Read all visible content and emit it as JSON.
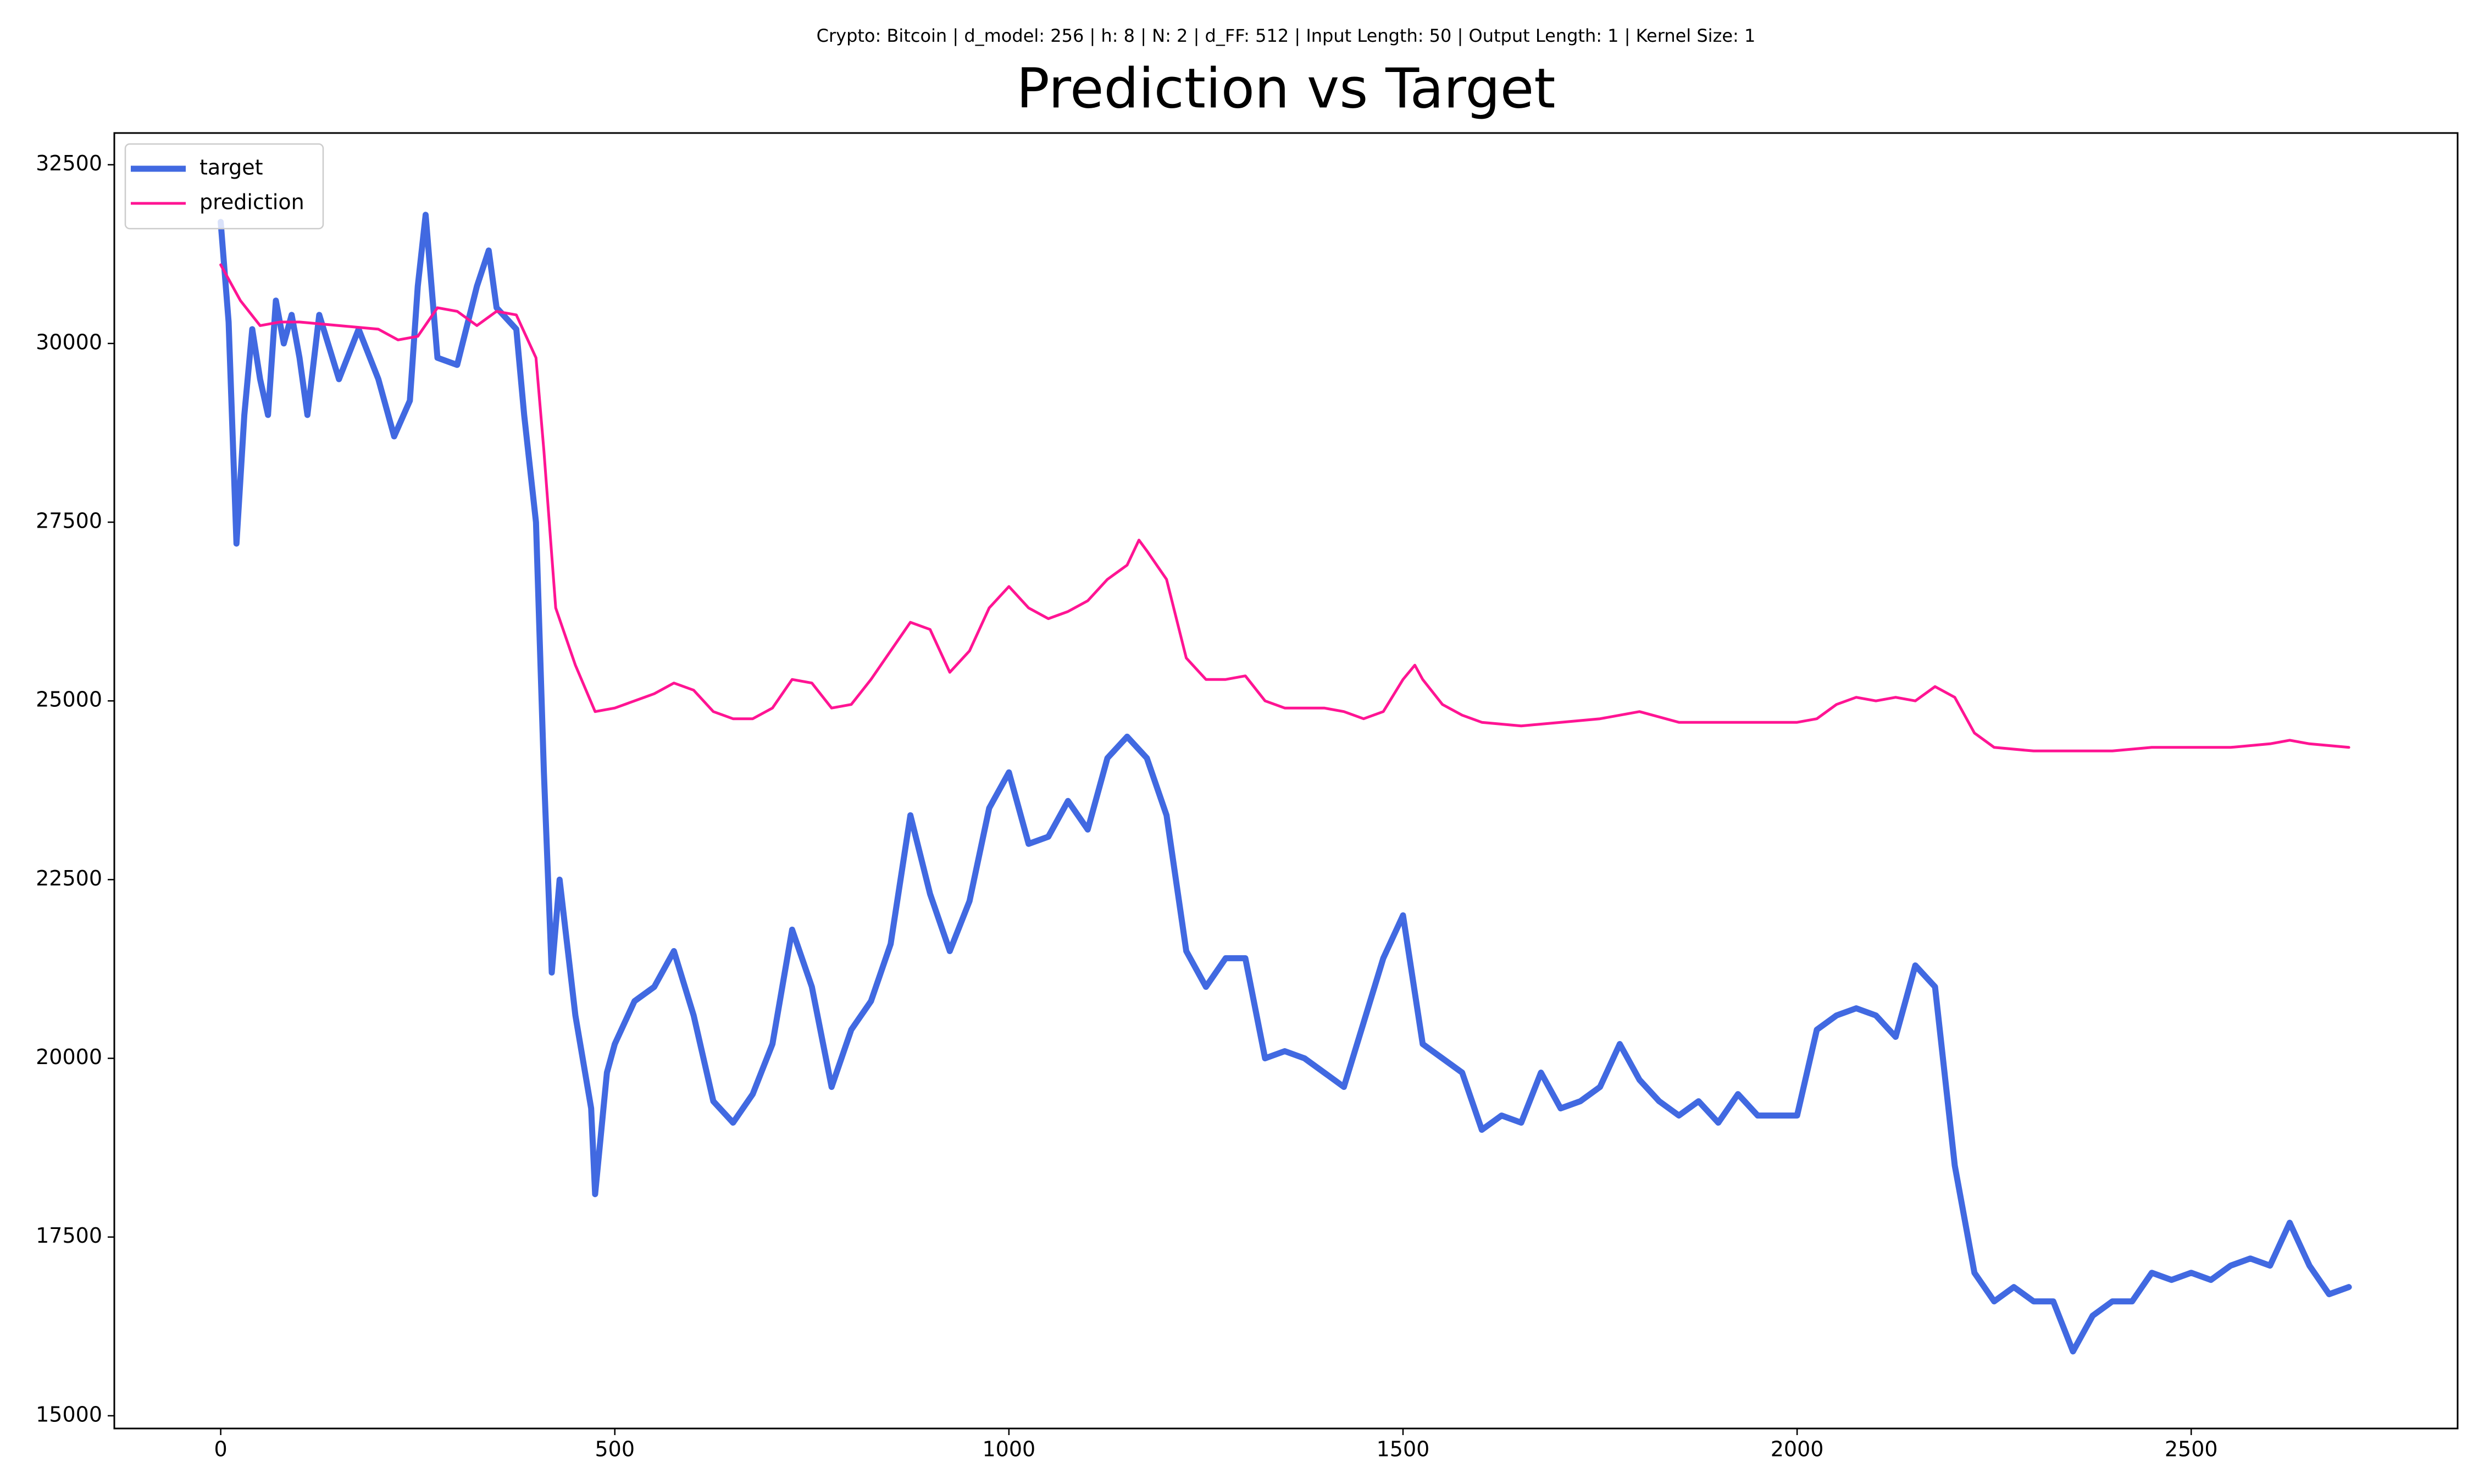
{
  "chart_data": {
    "type": "line",
    "subtitle": "Crypto: Bitcoin | d_model: 256 | h: 8 | N: 2 | d_FF: 512 | Input Length: 50 | Output Length: 1 | Kernel Size: 1",
    "title": "Prediction vs Target",
    "xlim": [
      -135,
      2838
    ],
    "ylim": [
      14822,
      32944
    ],
    "xticks": [
      0,
      500,
      1000,
      1500,
      2000,
      2500
    ],
    "yticks": [
      15000,
      17500,
      20000,
      22500,
      25000,
      27500,
      30000,
      32500
    ],
    "grid": false,
    "legend": "upper left",
    "series": [
      {
        "name": "target",
        "color": "#4169e1",
        "line_width": 11,
        "x": [
          0,
          10,
          20,
          30,
          40,
          50,
          60,
          70,
          80,
          90,
          100,
          110,
          125,
          150,
          175,
          200,
          220,
          240,
          250,
          260,
          275,
          300,
          325,
          340,
          350,
          375,
          385,
          400,
          410,
          420,
          430,
          450,
          470,
          475,
          490,
          500,
          525,
          550,
          575,
          600,
          625,
          650,
          675,
          700,
          725,
          750,
          775,
          800,
          825,
          850,
          875,
          900,
          925,
          950,
          975,
          1000,
          1025,
          1050,
          1075,
          1100,
          1125,
          1150,
          1175,
          1200,
          1225,
          1250,
          1275,
          1300,
          1325,
          1350,
          1375,
          1400,
          1425,
          1450,
          1475,
          1500,
          1525,
          1550,
          1575,
          1600,
          1625,
          1650,
          1675,
          1700,
          1725,
          1750,
          1775,
          1800,
          1825,
          1850,
          1875,
          1900,
          1925,
          1950,
          1975,
          2000,
          2025,
          2050,
          2075,
          2100,
          2125,
          2150,
          2175,
          2200,
          2225,
          2250,
          2275,
          2300,
          2325,
          2350,
          2375,
          2400,
          2425,
          2450,
          2475,
          2500,
          2525,
          2550,
          2575,
          2600,
          2625,
          2650,
          2675,
          2700
        ],
        "values": [
          31700,
          30300,
          27200,
          29000,
          30200,
          29500,
          29000,
          30600,
          30000,
          30400,
          29800,
          29000,
          30400,
          29500,
          30200,
          29500,
          28700,
          29200,
          30800,
          31800,
          29800,
          29700,
          30800,
          31300,
          30500,
          30200,
          29000,
          27500,
          24000,
          21200,
          22500,
          20600,
          19300,
          18100,
          19800,
          20200,
          20800,
          21000,
          21500,
          20600,
          19400,
          19100,
          19500,
          20200,
          21800,
          21000,
          19600,
          20400,
          20800,
          21600,
          23400,
          22300,
          21500,
          22200,
          23500,
          24000,
          23000,
          23100,
          23600,
          23200,
          24200,
          24500,
          24200,
          23400,
          21500,
          21000,
          21400,
          21400,
          20000,
          20100,
          20000,
          19800,
          19600,
          20500,
          21400,
          22000,
          20200,
          20000,
          19800,
          19000,
          19200,
          19100,
          19800,
          19300,
          19400,
          19600,
          20200,
          19700,
          19400,
          19200,
          19400,
          19100,
          19500,
          19200,
          19200,
          19200,
          20400,
          20600,
          20700,
          20600,
          20300,
          21300,
          21000,
          18500,
          17000,
          16600,
          16800,
          16600,
          16600,
          15900,
          16400,
          16600,
          16600,
          17000,
          16900,
          17000,
          16900,
          17100,
          17200,
          17100,
          17700,
          17100,
          16700,
          16800
        ]
      },
      {
        "name": "prediction",
        "color": "#ff1493",
        "line_width": 5,
        "x": [
          0,
          25,
          50,
          75,
          100,
          150,
          200,
          225,
          250,
          275,
          300,
          325,
          350,
          375,
          400,
          410,
          425,
          450,
          475,
          500,
          550,
          575,
          600,
          625,
          650,
          675,
          700,
          725,
          750,
          775,
          800,
          825,
          850,
          875,
          900,
          925,
          950,
          975,
          1000,
          1025,
          1050,
          1075,
          1100,
          1125,
          1150,
          1165,
          1175,
          1200,
          1225,
          1250,
          1275,
          1300,
          1325,
          1350,
          1400,
          1425,
          1450,
          1475,
          1500,
          1515,
          1525,
          1550,
          1575,
          1600,
          1650,
          1700,
          1750,
          1800,
          1850,
          1900,
          1950,
          2000,
          2025,
          2050,
          2075,
          2100,
          2125,
          2150,
          2175,
          2200,
          2225,
          2250,
          2300,
          2350,
          2400,
          2450,
          2500,
          2550,
          2600,
          2625,
          2650,
          2700
        ],
        "values": [
          31100,
          30600,
          30250,
          30300,
          30300,
          30250,
          30200,
          30050,
          30100,
          30500,
          30450,
          30250,
          30450,
          30400,
          29800,
          28500,
          26300,
          25500,
          24850,
          24900,
          25100,
          25250,
          25150,
          24850,
          24750,
          24750,
          24900,
          25300,
          25250,
          24900,
          24950,
          25300,
          25700,
          26100,
          26000,
          25400,
          25700,
          26300,
          26600,
          26300,
          26150,
          26250,
          26400,
          26700,
          26900,
          27250,
          27100,
          26700,
          25600,
          25300,
          25300,
          25350,
          25000,
          24900,
          24900,
          24850,
          24750,
          24850,
          25300,
          25500,
          25300,
          24950,
          24800,
          24700,
          24650,
          24700,
          24750,
          24850,
          24700,
          24700,
          24700,
          24700,
          24750,
          24950,
          25050,
          25000,
          25050,
          25000,
          25200,
          25050,
          24550,
          24350,
          24300,
          24300,
          24300,
          24350,
          24350,
          24350,
          24400,
          24450,
          24400,
          24350
        ]
      }
    ]
  }
}
